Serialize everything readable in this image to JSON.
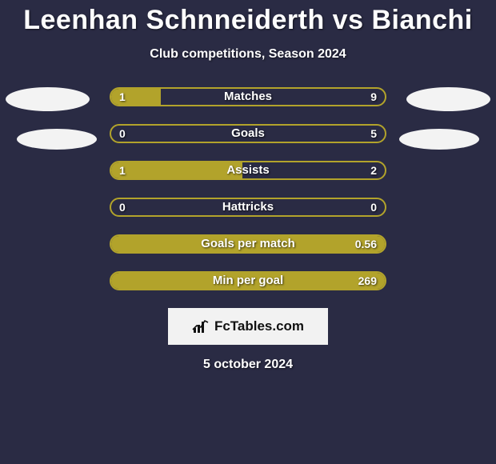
{
  "title": "Leenhan Schnneiderth vs Bianchi",
  "subtitle": "Club competitions, Season 2024",
  "date": "5 october 2024",
  "logo_text": "FcTables.com",
  "colors": {
    "page_bg": "#2a2b44",
    "bar_accent": "#b2a32b",
    "text": "#ffffff",
    "badge_bg": "#f2f2f2",
    "badge_text": "#111111",
    "placeholder": "#f3f3f3"
  },
  "bars": [
    {
      "label": "Matches",
      "left": "1",
      "right": "9",
      "fill_left_pct": 18,
      "fill_right_pct": 0
    },
    {
      "label": "Goals",
      "left": "0",
      "right": "5",
      "fill_left_pct": 0,
      "fill_right_pct": 0
    },
    {
      "label": "Assists",
      "left": "1",
      "right": "2",
      "fill_left_pct": 48,
      "fill_right_pct": 0
    },
    {
      "label": "Hattricks",
      "left": "0",
      "right": "0",
      "fill_left_pct": 0,
      "fill_right_pct": 0
    },
    {
      "label": "Goals per match",
      "left": "",
      "right": "0.56",
      "fill_left_pct": 100,
      "fill_right_pct": 0
    },
    {
      "label": "Min per goal",
      "left": "",
      "right": "269",
      "fill_left_pct": 100,
      "fill_right_pct": 0
    }
  ]
}
